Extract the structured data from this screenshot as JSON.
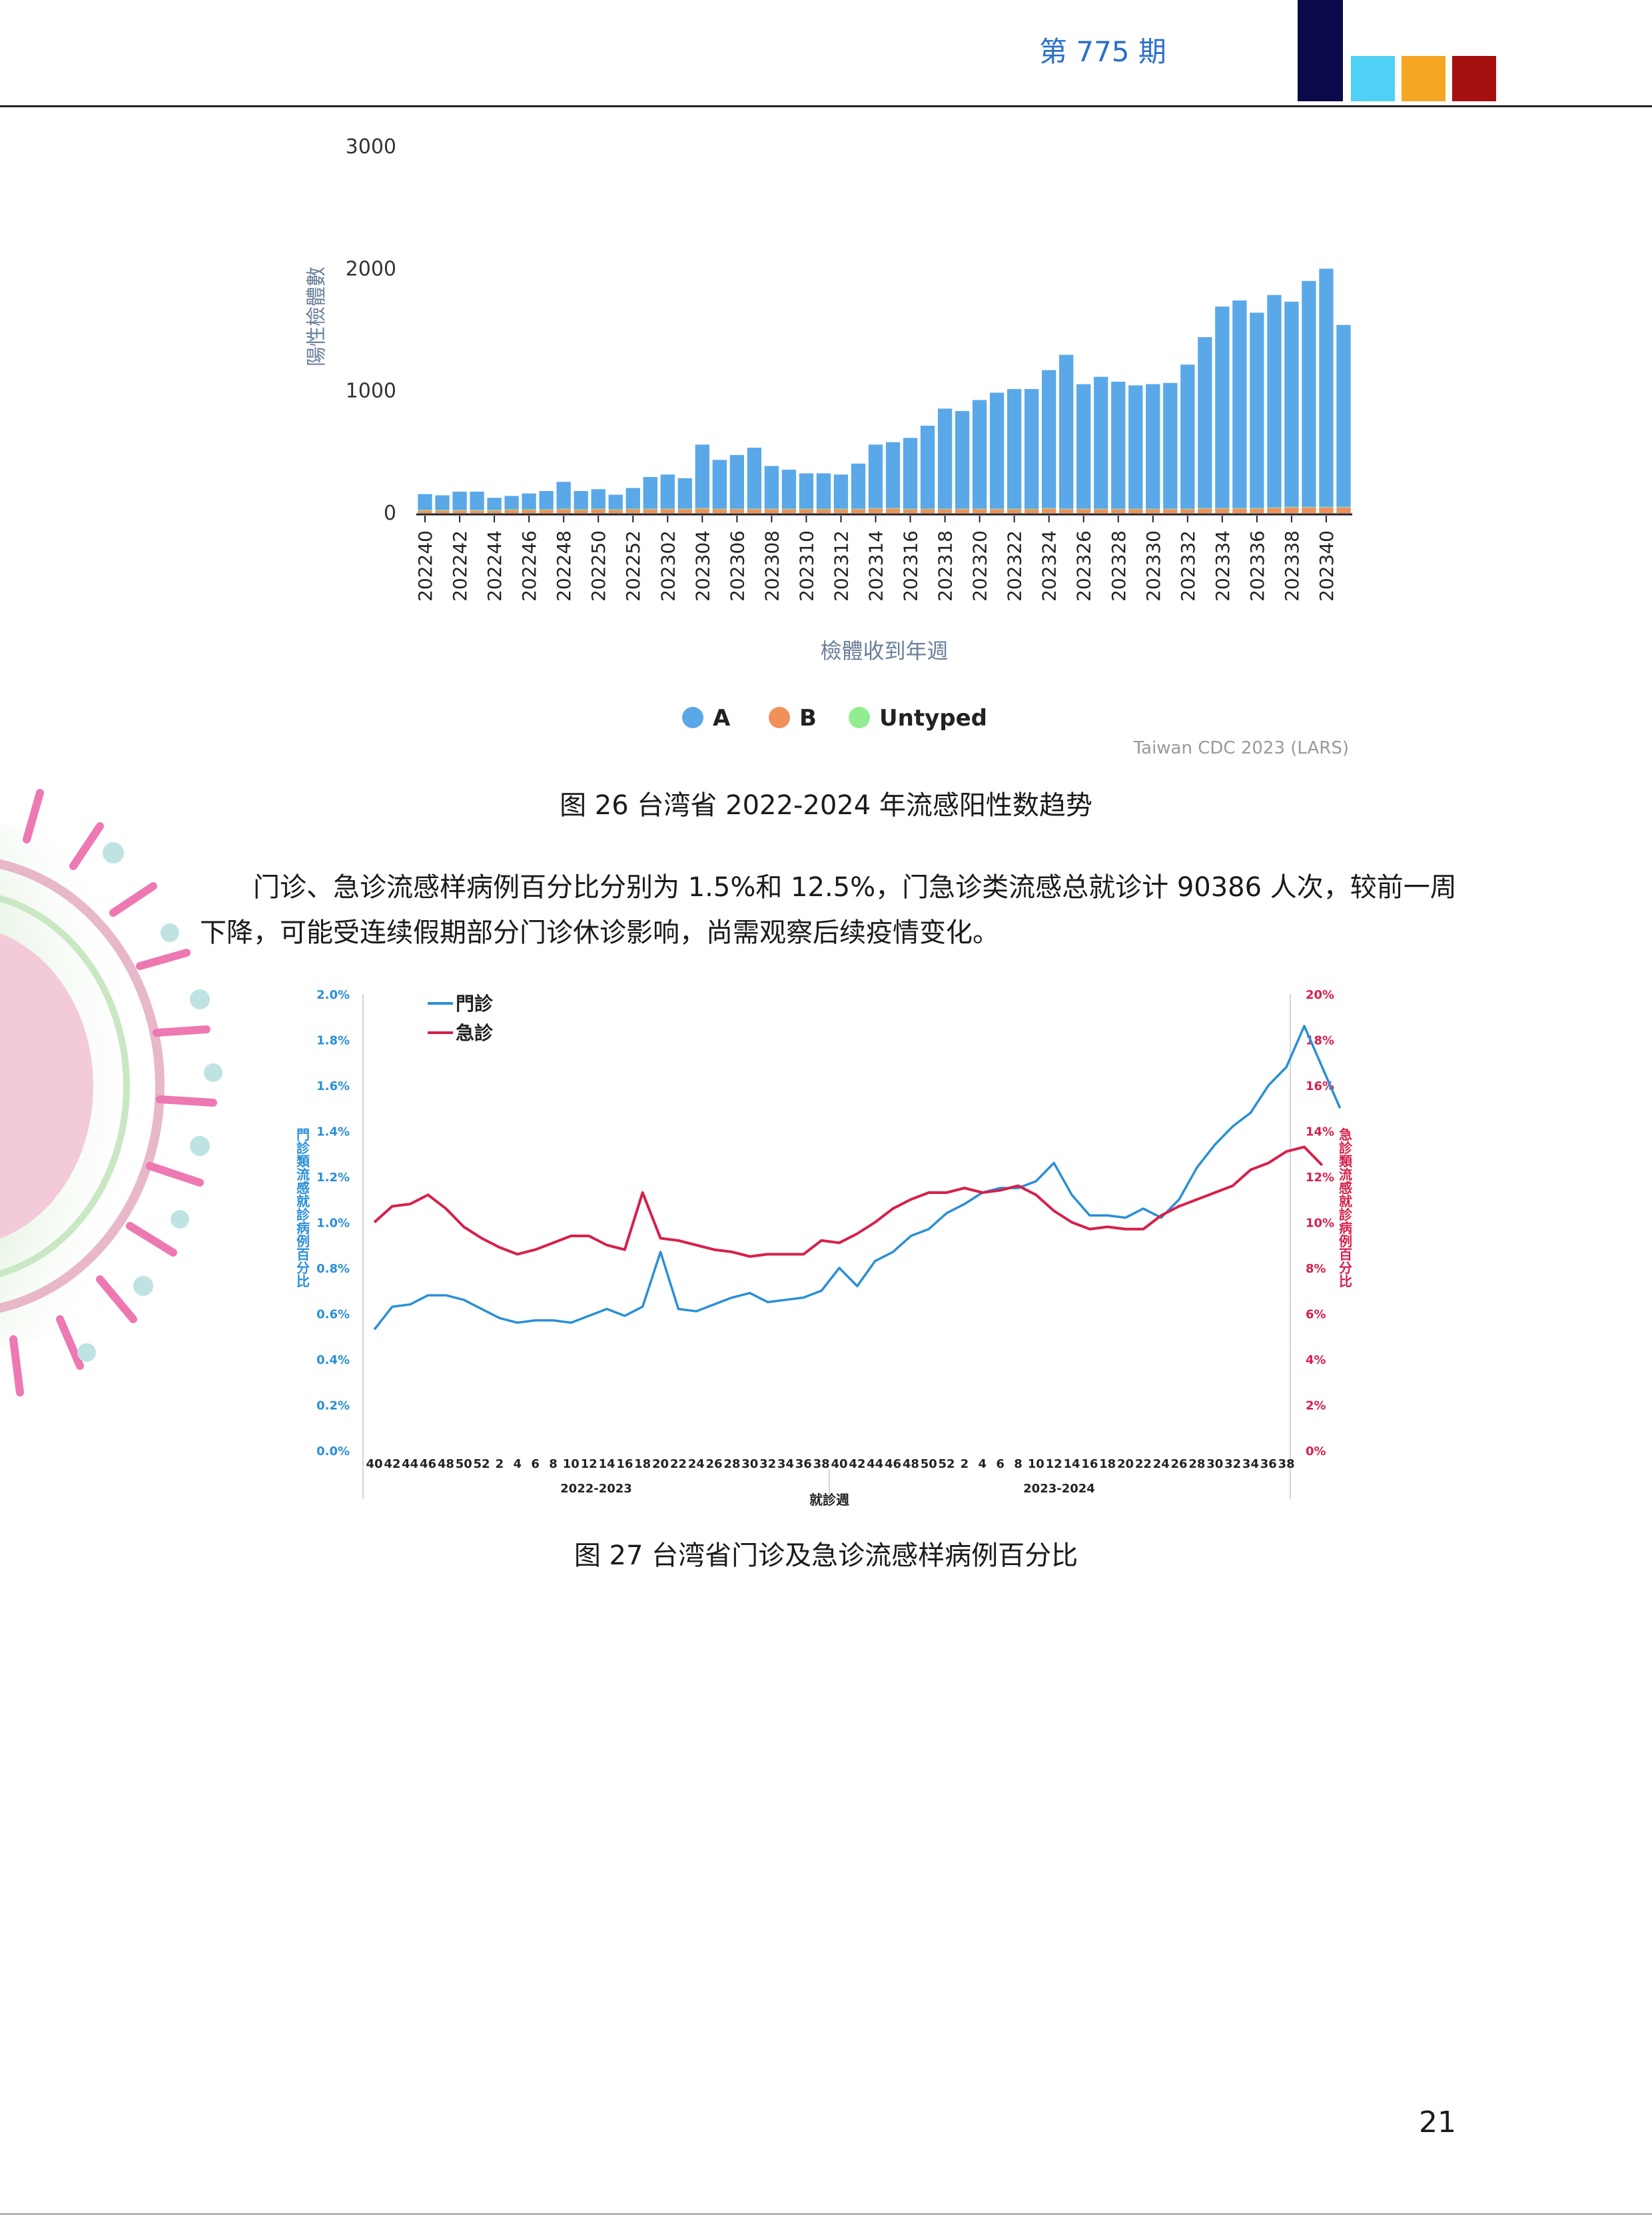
{
  "header": {
    "issue": "第 775 期"
  },
  "colors": {
    "navy": "#0a0a4a",
    "cyan": "#4fd0f5",
    "orange": "#f5a623",
    "red": "#a50f0f",
    "barA": "#5aa8e8",
    "barB": "#f0905a",
    "untyped": "#90ee90",
    "outpatient": "#2a8fd6",
    "emergency": "#d6204a"
  },
  "chart_data": [
    {
      "type": "bar",
      "stacked": true,
      "categories": [
        "202240",
        "202241",
        "202242",
        "202243",
        "202244",
        "202245",
        "202246",
        "202247",
        "202248",
        "202249",
        "202250",
        "202251",
        "202252",
        "202301",
        "202302",
        "202303",
        "202304",
        "202305",
        "202306",
        "202307",
        "202308",
        "202309",
        "202310",
        "202311",
        "202312",
        "202313",
        "202314",
        "202315",
        "202316",
        "202317",
        "202318",
        "202319",
        "202320",
        "202321",
        "202322",
        "202323",
        "202324",
        "202325",
        "202326",
        "202327",
        "202328",
        "202329",
        "202330",
        "202331",
        "202332",
        "202333",
        "202334",
        "202335",
        "202336",
        "202337",
        "202338",
        "202339",
        "202340",
        "202341"
      ],
      "tick_labels": [
        "202240",
        "202242",
        "202244",
        "202246",
        "202248",
        "202250",
        "202252",
        "202302",
        "202304",
        "202306",
        "202308",
        "202310",
        "202312",
        "202314",
        "202316",
        "202318",
        "202320",
        "202322",
        "202324",
        "202326",
        "202328",
        "202330",
        "202332",
        "202334",
        "202336",
        "202338",
        "202340"
      ],
      "series": [
        {
          "name": "A",
          "values": [
            130,
            120,
            150,
            150,
            100,
            110,
            130,
            150,
            220,
            150,
            160,
            120,
            170,
            260,
            280,
            250,
            520,
            400,
            440,
            500,
            350,
            320,
            290,
            290,
            280,
            370,
            520,
            540,
            580,
            680,
            820,
            800,
            890,
            950,
            980,
            980,
            1130,
            1260,
            1020,
            1080,
            1040,
            1010,
            1020,
            1030,
            1180,
            1400,
            1650,
            1700,
            1600,
            1740,
            1680,
            1850,
            1950,
            1490
          ]
        },
        {
          "name": "B",
          "values": [
            20,
            20,
            20,
            20,
            20,
            25,
            25,
            25,
            30,
            25,
            30,
            25,
            30,
            30,
            30,
            30,
            35,
            30,
            30,
            30,
            30,
            30,
            30,
            30,
            30,
            30,
            35,
            35,
            30,
            30,
            30,
            30,
            30,
            30,
            30,
            30,
            35,
            30,
            30,
            30,
            30,
            30,
            30,
            30,
            30,
            35,
            35,
            35,
            35,
            40,
            45,
            45,
            45,
            45
          ]
        },
        {
          "name": "Untyped",
          "values": [
            5,
            5,
            5,
            5,
            5,
            5,
            5,
            5,
            5,
            5,
            5,
            5,
            5,
            5,
            5,
            5,
            5,
            5,
            5,
            5,
            5,
            5,
            5,
            5,
            5,
            5,
            5,
            5,
            5,
            5,
            5,
            5,
            5,
            5,
            5,
            5,
            5,
            5,
            5,
            5,
            5,
            5,
            5,
            5,
            5,
            5,
            5,
            5,
            5,
            5,
            5,
            5,
            5,
            5
          ]
        }
      ],
      "ylabel": "陽性檢體數",
      "xlabel": "檢體收到年週",
      "ylim": [
        0,
        3000
      ],
      "yticks": [
        0,
        1000,
        2000,
        3000
      ],
      "legend": [
        "A",
        "B",
        "Untyped"
      ],
      "legend_position": "bottom",
      "source": "Taiwan CDC 2023 (LARS)"
    },
    {
      "type": "line",
      "x_labels": [
        "40",
        "42",
        "44",
        "46",
        "48",
        "50",
        "52",
        "2",
        "4",
        "6",
        "8",
        "10",
        "12",
        "14",
        "16",
        "18",
        "20",
        "22",
        "24",
        "26",
        "28",
        "30",
        "32",
        "34",
        "36",
        "38",
        "40",
        "42",
        "44",
        "46",
        "48",
        "50",
        "52",
        "2",
        "4",
        "6",
        "8",
        "10",
        "12",
        "14",
        "16",
        "18",
        "20",
        "22",
        "24",
        "26",
        "28",
        "30",
        "32",
        "34",
        "36",
        "38"
      ],
      "seasons": [
        "2022-2023",
        "2023-2024"
      ],
      "xlabel": "就診週",
      "ylabel_left": "門診類流感就診病例百分比",
      "ylabel_right": "急診類流感就診病例百分比",
      "y_left_ticks": [
        "0.0%",
        "0.2%",
        "0.4%",
        "0.6%",
        "0.8%",
        "1.0%",
        "1.2%",
        "1.4%",
        "1.6%",
        "1.8%",
        "2.0%"
      ],
      "y_right_ticks": [
        "0%",
        "2%",
        "4%",
        "6%",
        "8%",
        "10%",
        "12%",
        "14%",
        "16%",
        "18%",
        "20%"
      ],
      "ylim_left": [
        0,
        2.0
      ],
      "ylim_right": [
        0,
        20
      ],
      "series": [
        {
          "name": "門診",
          "axis": "left",
          "values": [
            0.53,
            0.63,
            0.64,
            0.68,
            0.68,
            0.66,
            0.62,
            0.58,
            0.56,
            0.57,
            0.57,
            0.56,
            0.59,
            0.62,
            0.59,
            0.63,
            0.87,
            0.62,
            0.61,
            0.64,
            0.67,
            0.69,
            0.65,
            0.66,
            0.67,
            0.7,
            0.8,
            0.72,
            0.83,
            0.87,
            0.94,
            0.97,
            1.04,
            1.08,
            1.13,
            1.15,
            1.15,
            1.18,
            1.26,
            1.12,
            1.03,
            1.03,
            1.02,
            1.06,
            1.02,
            1.1,
            1.24,
            1.34,
            1.42,
            1.48,
            1.6,
            1.68,
            1.86,
            1.68,
            1.5
          ]
        },
        {
          "name": "急診",
          "axis": "right",
          "values": [
            10.0,
            10.7,
            10.8,
            11.2,
            10.6,
            9.8,
            9.3,
            8.9,
            8.6,
            8.8,
            9.1,
            9.4,
            9.4,
            9.0,
            8.8,
            11.3,
            9.3,
            9.2,
            9.0,
            8.8,
            8.7,
            8.5,
            8.6,
            8.6,
            8.6,
            9.2,
            9.1,
            9.5,
            10.0,
            10.6,
            11.0,
            11.3,
            11.3,
            11.5,
            11.3,
            11.4,
            11.6,
            11.2,
            10.5,
            10.0,
            9.7,
            9.8,
            9.7,
            9.7,
            10.3,
            10.7,
            11.0,
            11.3,
            11.6,
            12.3,
            12.6,
            13.1,
            13.3,
            12.5
          ]
        }
      ],
      "legend_position": "top-left"
    }
  ],
  "figure26": {
    "caption": "图 26  台湾省 2022-2024 年流感阳性数趋势"
  },
  "paragraph": {
    "line1": "门诊、急诊流感样病例百分比分别为 1.5%和 12.5%，门急诊类流感总就诊计 90386 人次，较前一周",
    "line2": "下降，可能受连续假期部分门诊休诊影响，尚需观察后续疫情变化。"
  },
  "figure27": {
    "caption": "图 27    台湾省门诊及急诊流感样病例百分比"
  },
  "page_number": "21"
}
